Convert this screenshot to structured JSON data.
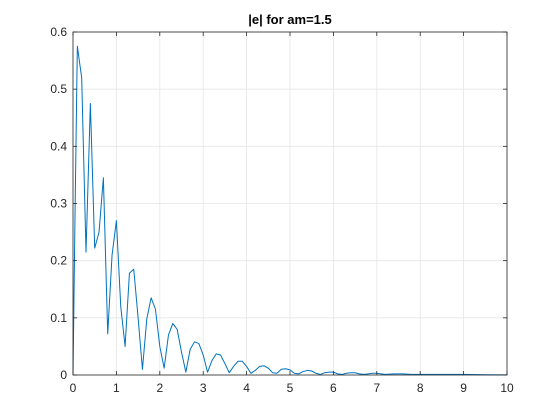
{
  "chart_data": {
    "type": "line",
    "title": "|e| for am=1.5",
    "xlabel": "",
    "ylabel": "",
    "xlim": [
      0,
      10
    ],
    "ylim": [
      0,
      0.6
    ],
    "grid": true,
    "x_ticks": [
      0,
      1,
      2,
      3,
      4,
      5,
      6,
      7,
      8,
      9,
      10
    ],
    "y_ticks": [
      0,
      0.1,
      0.2,
      0.3,
      0.4,
      0.5,
      0.6
    ],
    "x_tick_labels": [
      "0",
      "1",
      "2",
      "3",
      "4",
      "5",
      "6",
      "7",
      "8",
      "9",
      "10"
    ],
    "y_tick_labels": [
      "0",
      "0.1",
      "0.2",
      "0.3",
      "0.4",
      "0.5",
      "0.6"
    ],
    "colors": {
      "line": "#0072BD",
      "grid": "#e6e6e6",
      "axes": "#262626",
      "background": "#ffffff"
    },
    "series": [
      {
        "x": [
          0,
          0.05,
          0.1,
          0.2,
          0.3,
          0.4,
          0.5,
          0.6,
          0.7,
          0.8,
          0.9,
          1.0,
          1.1,
          1.2,
          1.3,
          1.4,
          1.5,
          1.6,
          1.7,
          1.8,
          1.9,
          2.0,
          2.1,
          2.2,
          2.3,
          2.4,
          2.5,
          2.6,
          2.7,
          2.8,
          2.9,
          3.0,
          3.1,
          3.2,
          3.3,
          3.4,
          3.5,
          3.6,
          3.7,
          3.8,
          3.9,
          4.0,
          4.1,
          4.2,
          4.3,
          4.4,
          4.5,
          4.6,
          4.7,
          4.8,
          4.9,
          5.0,
          5.1,
          5.2,
          5.3,
          5.4,
          5.5,
          5.6,
          5.7,
          5.8,
          5.9,
          6.0,
          6.1,
          6.2,
          6.3,
          6.4,
          6.5,
          6.6,
          6.7,
          6.8,
          6.9,
          7.0,
          7.2,
          7.4,
          7.6,
          7.8,
          8.0,
          8.2,
          8.4,
          8.6,
          8.8,
          9.0,
          9.5,
          10.0
        ],
        "values": [
          0,
          0.3,
          0.575,
          0.52,
          0.215,
          0.475,
          0.222,
          0.25,
          0.345,
          0.072,
          0.21,
          0.27,
          0.12,
          0.05,
          0.178,
          0.185,
          0.1,
          0.01,
          0.098,
          0.135,
          0.115,
          0.05,
          0.012,
          0.07,
          0.09,
          0.08,
          0.04,
          0.005,
          0.045,
          0.058,
          0.055,
          0.035,
          0.005,
          0.025,
          0.037,
          0.035,
          0.02,
          0.004,
          0.015,
          0.024,
          0.024,
          0.015,
          0.003,
          0.008,
          0.015,
          0.016,
          0.012,
          0.004,
          0.003,
          0.01,
          0.011,
          0.009,
          0.003,
          0.002,
          0.006,
          0.008,
          0.007,
          0.003,
          0.001,
          0.004,
          0.005,
          0.005,
          0.002,
          0.001,
          0.003,
          0.004,
          0.004,
          0.002,
          0.001,
          0.002,
          0.003,
          0.003,
          0.001,
          0.002,
          0.002,
          0.001,
          0.001,
          0.001,
          0.001,
          0.001,
          0.001,
          0.001,
          0.0005,
          0.0003
        ]
      }
    ]
  }
}
